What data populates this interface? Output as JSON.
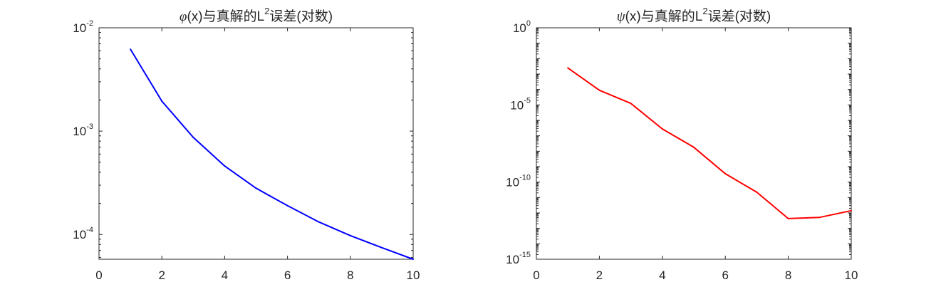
{
  "chart_data": [
    {
      "type": "line",
      "title_prefix": "φ",
      "title_mid": "(x)与真解的L",
      "title_sup": "2",
      "title_suffix": "误差(对数)",
      "xlim": [
        0,
        10
      ],
      "xticks": [
        0,
        2,
        4,
        6,
        8,
        10
      ],
      "yscale": "log",
      "ylim": [
        5.76e-05,
        0.01
      ],
      "ytick_exponents": [
        -2,
        -3,
        -4
      ],
      "ytick_base": "10",
      "grid": false,
      "line_color": "#0000ff",
      "x": [
        1,
        2,
        3,
        4,
        5,
        6,
        7,
        8,
        9,
        10
      ],
      "y": [
        0.0062,
        0.00195,
        0.00087,
        0.00046,
        0.00028,
        0.00019,
        0.000132,
        9.76e-05,
        7.46e-05,
        5.76e-05
      ]
    },
    {
      "type": "line",
      "title_prefix": "ψ",
      "title_mid": "(x)与真解的L",
      "title_sup": "2",
      "title_suffix": "误差(对数)",
      "xlim": [
        0,
        10
      ],
      "xticks": [
        0,
        2,
        4,
        6,
        8,
        10
      ],
      "yscale": "log",
      "ylim": [
        1e-15,
        1
      ],
      "ytick_exponents": [
        0,
        -5,
        -10,
        -15
      ],
      "ytick_base": "10",
      "grid": false,
      "line_color": "#ff0000",
      "x": [
        1,
        2,
        3,
        4,
        5,
        6,
        7,
        8,
        9,
        10
      ],
      "y": [
        0.0025,
        9e-05,
        1.26e-05,
        2.8e-07,
        1.8e-08,
        3.5e-10,
        2.2e-11,
        4.3e-13,
        5.2e-13,
        1.4e-12
      ]
    }
  ]
}
